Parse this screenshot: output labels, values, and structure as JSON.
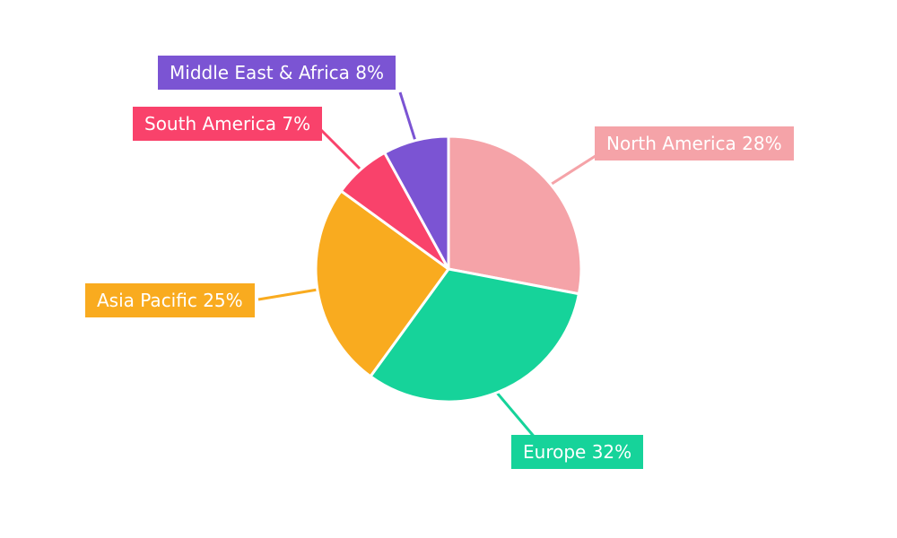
{
  "chart_data": {
    "type": "pie",
    "title": "",
    "legend": "none",
    "background": "#FFFFFF",
    "start_angle_deg": 0,
    "direction": "clockwise",
    "label_format": "name percent",
    "slices": [
      {
        "label": "North America",
        "value": 28,
        "display": "North America 28%",
        "color": "#F5A3A8"
      },
      {
        "label": "Europe",
        "value": 32,
        "display": "Europe 32%",
        "color": "#16D39A"
      },
      {
        "label": "Asia Pacific",
        "value": 25,
        "display": "Asia Pacific 25%",
        "color": "#F9AB1F"
      },
      {
        "label": "South America",
        "value": 7,
        "display": "South America 7%",
        "color": "#F9426B"
      },
      {
        "label": "Middle East & Africa",
        "value": 8,
        "display": "Middle East & Africa 8%",
        "color": "#7B54D3"
      }
    ]
  }
}
